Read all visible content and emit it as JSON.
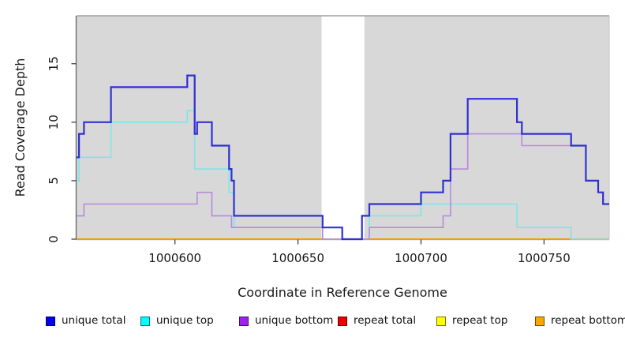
{
  "figure": {
    "background": "#ffffff"
  },
  "chart_data": {
    "type": "line",
    "subtype": "step",
    "title": "",
    "xlabel": "Coordinate in Reference Genome",
    "ylabel": "Read Coverage Depth",
    "xlim": [
      1000560,
      1000776.5
    ],
    "ylim": [
      0,
      19.1
    ],
    "xticks": [
      1000600,
      1000650,
      1000700,
      1000750
    ],
    "yticks": [
      0,
      5,
      10,
      15
    ],
    "grid": false,
    "legend_position": "bottom",
    "panel_color": "#d8d8d8",
    "gap_band": {
      "x_start": 1000659.6,
      "x_end": 1000677,
      "color": "#ffffff"
    },
    "series": [
      {
        "name": "repeat total",
        "line_color": "#dd2222",
        "swatch_color": "#ee0000",
        "line_width": 1.6,
        "x_end": 1000776.5,
        "step_points": [
          [
            1000560,
            0
          ]
        ]
      },
      {
        "name": "repeat top",
        "line_color": "#f2e72a",
        "swatch_color": "#ffff00",
        "line_width": 1.6,
        "x_end": 1000776.5,
        "step_points": [
          [
            1000560,
            0
          ]
        ]
      },
      {
        "name": "repeat bottom",
        "line_color": "#ff9900",
        "swatch_color": "#ffa500",
        "line_width": 2,
        "x_end": 1000776.5,
        "step_points": [
          [
            1000560,
            0
          ]
        ]
      },
      {
        "name": "unique top",
        "line_color": "#7de6e6",
        "swatch_color": "#00ffff",
        "line_width": 1.6,
        "x_end": 1000776.5,
        "step_points": [
          [
            1000560,
            5
          ],
          [
            1000561,
            7
          ],
          [
            1000574,
            10
          ],
          [
            1000605,
            11
          ],
          [
            1000608,
            6
          ],
          [
            1000622,
            4
          ],
          [
            1000624,
            1
          ],
          [
            1000660,
            0
          ],
          [
            1000679,
            2
          ],
          [
            1000700,
            3
          ],
          [
            1000739,
            1
          ],
          [
            1000761,
            0
          ]
        ]
      },
      {
        "name": "unique bottom",
        "line_color": "#b68ade",
        "swatch_color": "#a020f0",
        "line_width": 1.6,
        "x_end": 1000776.5,
        "step_points": [
          [
            1000560,
            2
          ],
          [
            1000563,
            3
          ],
          [
            1000609,
            4
          ],
          [
            1000615,
            2
          ],
          [
            1000623,
            1
          ],
          [
            1000660,
            0
          ],
          [
            1000679,
            1
          ],
          [
            1000709,
            2
          ],
          [
            1000712,
            6
          ],
          [
            1000719,
            9
          ],
          [
            1000741,
            8
          ],
          [
            1000767,
            5
          ],
          [
            1000772,
            4
          ],
          [
            1000774,
            3
          ]
        ]
      },
      {
        "name": "unique total",
        "line_color": "#3030d2",
        "swatch_color": "#0000ee",
        "line_width": 2.2,
        "x_end": 1000776.5,
        "step_points": [
          [
            1000560,
            7
          ],
          [
            1000561,
            9
          ],
          [
            1000563,
            10
          ],
          [
            1000574,
            13
          ],
          [
            1000605,
            14
          ],
          [
            1000608,
            9
          ],
          [
            1000609,
            10
          ],
          [
            1000615,
            8
          ],
          [
            1000622,
            6
          ],
          [
            1000623,
            5
          ],
          [
            1000624,
            2
          ],
          [
            1000660,
            1
          ],
          [
            1000668,
            0
          ],
          [
            1000676,
            2
          ],
          [
            1000679,
            3
          ],
          [
            1000700,
            4
          ],
          [
            1000709,
            5
          ],
          [
            1000712,
            9
          ],
          [
            1000719,
            12
          ],
          [
            1000739,
            10
          ],
          [
            1000741,
            9
          ],
          [
            1000761,
            8
          ],
          [
            1000767,
            5
          ],
          [
            1000772,
            4
          ],
          [
            1000774,
            3
          ]
        ]
      }
    ]
  },
  "legend": {
    "items": [
      {
        "label": "unique total",
        "color": "#0000ee"
      },
      {
        "label": "unique top",
        "color": "#00ffff"
      },
      {
        "label": "unique bottom",
        "color": "#a020f0"
      },
      {
        "label": "repeat total",
        "color": "#ee0000"
      },
      {
        "label": "repeat top",
        "color": "#ffff00"
      },
      {
        "label": "repeat bottom",
        "color": "#ffa500"
      }
    ]
  }
}
